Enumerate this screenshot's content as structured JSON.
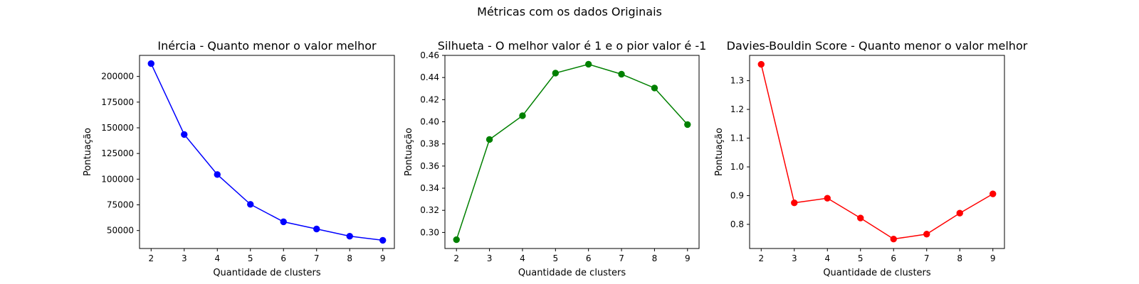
{
  "figure": {
    "suptitle": "Métricas com os dados Originais"
  },
  "chart_data": [
    {
      "type": "line",
      "title": "Inércia - Quanto menor o valor melhor",
      "xlabel": "Quantidade de clusters",
      "ylabel": "Pontuação",
      "x": [
        2,
        3,
        4,
        5,
        6,
        7,
        8,
        9
      ],
      "series": [
        {
          "values": [
            212500,
            143500,
            104500,
            75500,
            58500,
            51500,
            44500,
            40500
          ],
          "color": "#0000ff",
          "marker": "circle"
        }
      ],
      "xlim": [
        1.65,
        9.35
      ],
      "ylim": [
        32500,
        220500
      ],
      "xticks": [
        2,
        3,
        4,
        5,
        6,
        7,
        8,
        9
      ],
      "yticks": [
        50000,
        75000,
        100000,
        125000,
        150000,
        175000,
        200000
      ],
      "yticklabels": [
        "50000",
        "75000",
        "100000",
        "125000",
        "150000",
        "175000",
        "200000"
      ],
      "grid": false
    },
    {
      "type": "line",
      "title": "Silhueta - O melhor valor é 1 e o pior valor é -1",
      "xlabel": "Quantidade de clusters",
      "ylabel": "Pontuação",
      "x": [
        2,
        3,
        4,
        5,
        6,
        7,
        8,
        9
      ],
      "series": [
        {
          "values": [
            0.2935,
            0.384,
            0.4055,
            0.444,
            0.452,
            0.443,
            0.4305,
            0.3975
          ],
          "color": "#008000",
          "marker": "circle"
        }
      ],
      "xlim": [
        1.65,
        9.35
      ],
      "ylim": [
        0.2855,
        0.46
      ],
      "xticks": [
        2,
        3,
        4,
        5,
        6,
        7,
        8,
        9
      ],
      "yticks": [
        0.3,
        0.32,
        0.34,
        0.36,
        0.38,
        0.4,
        0.42,
        0.44,
        0.46
      ],
      "yticklabels": [
        "0.30",
        "0.32",
        "0.34",
        "0.36",
        "0.38",
        "0.40",
        "0.42",
        "0.44",
        "0.46"
      ],
      "grid": false
    },
    {
      "type": "line",
      "title": "Davies-Bouldin Score - Quanto menor o valor melhor",
      "xlabel": "Quantidade de clusters",
      "ylabel": "Pontuação",
      "x": [
        2,
        3,
        4,
        5,
        6,
        7,
        8,
        9
      ],
      "series": [
        {
          "values": [
            1.357,
            0.875,
            0.891,
            0.822,
            0.749,
            0.766,
            0.839,
            0.906
          ],
          "color": "#ff0000",
          "marker": "circle"
        }
      ],
      "xlim": [
        1.65,
        9.35
      ],
      "ylim": [
        0.716,
        1.388
      ],
      "xticks": [
        2,
        3,
        4,
        5,
        6,
        7,
        8,
        9
      ],
      "yticks": [
        0.8,
        0.9,
        1.0,
        1.1,
        1.2,
        1.3
      ],
      "yticklabels": [
        "0.8",
        "0.9",
        "1.0",
        "1.1",
        "1.2",
        "1.3"
      ],
      "grid": false
    }
  ]
}
